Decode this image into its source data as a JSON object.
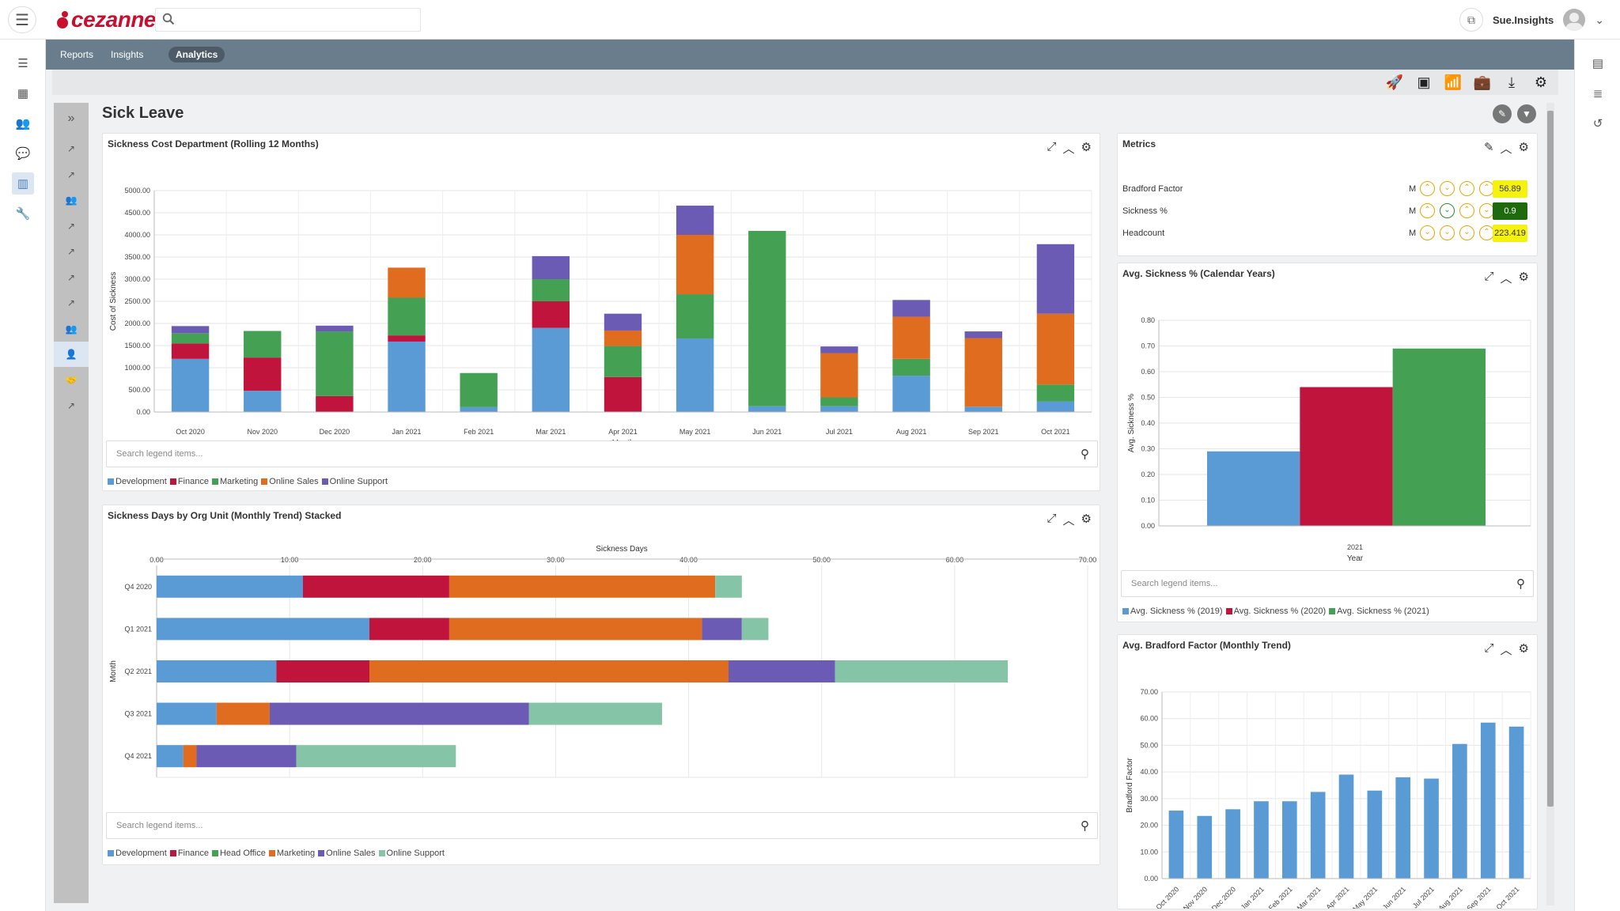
{
  "header": {
    "username": "Sue.Insights",
    "search_placeholder": ""
  },
  "nav": {
    "tabs": [
      {
        "label": "Reports"
      },
      {
        "label": "Insights"
      },
      {
        "label": "Analytics"
      }
    ]
  },
  "page": {
    "title": "Sick Leave"
  },
  "legend_search_placeholder": "Search legend items...",
  "colors": {
    "development": "#5b9bd5",
    "finance": "#c0143c",
    "marketing": "#44a052",
    "online_sales": "#e06c1f",
    "online_support": "#6b5bb4",
    "head_office": "#85c4a7"
  },
  "cards": {
    "sickness_cost": {
      "title": "Sickness Cost Department (Rolling 12 Months)"
    },
    "sickness_days": {
      "title": "Sickness Days by Org Unit (Monthly Trend) Stacked"
    },
    "metrics": {
      "title": "Metrics"
    },
    "avg_sickness": {
      "title": "Avg. Sickness % (Calendar Years)"
    },
    "avg_bradford": {
      "title": "Avg. Bradford Factor (Monthly Trend)"
    }
  },
  "metrics": [
    {
      "label": "Bradford Factor",
      "m": "M",
      "value": "56.89",
      "arrows": [
        "up",
        "down",
        "up",
        "up"
      ],
      "value_bg": "#f5f20f",
      "value_fg": "#333333"
    },
    {
      "label": "Sickness %",
      "m": "M",
      "value": "0.9",
      "arrows": [
        "up",
        "down",
        "up",
        "down"
      ],
      "value_bg": "#1e6b0e",
      "value_fg": "#ffffff"
    },
    {
      "label": "Headcount",
      "m": "M",
      "value": "223.419",
      "arrows": [
        "down",
        "down",
        "down",
        "up"
      ],
      "value_bg": "#f5f20f",
      "value_fg": "#333333"
    }
  ],
  "chart_data": [
    {
      "type": "bar",
      "stacked": true,
      "title": "Sickness Cost Department (Rolling 12 Months)",
      "xlabel": "Month",
      "ylabel": "Cost of Sickness",
      "ylim": [
        0,
        5000
      ],
      "yticks": [
        "0.00",
        "500.00",
        "1000.00",
        "1500.00",
        "2000.00",
        "2500.00",
        "3000.00",
        "3500.00",
        "4000.00",
        "4500.00",
        "5000.00"
      ],
      "categories": [
        "Oct 2020",
        "Nov 2020",
        "Dec 2020",
        "Jan 2021",
        "Feb 2021",
        "Mar 2021",
        "Apr 2021",
        "May 2021",
        "Jun 2021",
        "Jul 2021",
        "Aug 2021",
        "Sep 2021",
        "Oct 2021"
      ],
      "series": [
        {
          "name": "Development",
          "color": "#5b9bd5",
          "values": [
            1200,
            480,
            0,
            1590,
            110,
            1900,
            0,
            1660,
            130,
            130,
            820,
            120,
            240
          ]
        },
        {
          "name": "Finance",
          "color": "#c0143c",
          "values": [
            350,
            750,
            360,
            140,
            0,
            600,
            790,
            0,
            0,
            0,
            0,
            0,
            0
          ]
        },
        {
          "name": "Marketing",
          "color": "#44a052",
          "values": [
            230,
            600,
            1460,
            850,
            770,
            500,
            700,
            1000,
            3960,
            200,
            380,
            0,
            380
          ]
        },
        {
          "name": "Online Sales",
          "color": "#e06c1f",
          "values": [
            0,
            0,
            0,
            680,
            0,
            0,
            350,
            1340,
            0,
            1000,
            950,
            1550,
            1600
          ]
        },
        {
          "name": "Online Support",
          "color": "#6b5bb4",
          "values": [
            160,
            0,
            130,
            0,
            0,
            520,
            380,
            660,
            0,
            150,
            380,
            150,
            1570
          ]
        }
      ]
    },
    {
      "type": "bar",
      "orientation": "horizontal",
      "stacked": true,
      "title": "Sickness Days by Org Unit (Monthly Trend) Stacked",
      "xlabel": "Sickness Days",
      "ylabel": "Month",
      "xlim": [
        0,
        70
      ],
      "xticks": [
        "0.00",
        "10.00",
        "20.00",
        "30.00",
        "40.00",
        "50.00",
        "60.00",
        "70.00"
      ],
      "categories": [
        "Q4 2020",
        "Q1 2021",
        "Q2 2021",
        "Q3 2021",
        "Q4 2021"
      ],
      "series": [
        {
          "name": "Development",
          "color": "#5b9bd5",
          "values": [
            11,
            16,
            9,
            4.5,
            2
          ]
        },
        {
          "name": "Finance",
          "color": "#c0143c",
          "values": [
            11,
            6,
            7,
            0,
            0
          ]
        },
        {
          "name": "Head Office",
          "color": "#44a052",
          "values": [
            0,
            0,
            0,
            0,
            0
          ]
        },
        {
          "name": "Marketing",
          "color": "#e06c1f",
          "values": [
            20,
            19,
            27,
            4,
            1
          ]
        },
        {
          "name": "Online Sales",
          "color": "#6b5bb4",
          "values": [
            0,
            3,
            8,
            19.5,
            7.5
          ]
        },
        {
          "name": "Online Support",
          "color": "#85c4a7",
          "values": [
            2,
            2,
            13,
            10,
            12
          ]
        }
      ]
    },
    {
      "type": "bar",
      "title": "Avg. Sickness % (Calendar Years)",
      "xlabel": "Year",
      "ylabel": "Avg. Sickness %",
      "ylim": [
        0,
        0.8
      ],
      "yticks": [
        "0.00",
        "0.10",
        "0.20",
        "0.30",
        "0.40",
        "0.50",
        "0.60",
        "0.70",
        "0.80"
      ],
      "categories": [
        "2021"
      ],
      "series": [
        {
          "name": "Avg. Sickness % (2019)",
          "color": "#5b9bd5",
          "values": [
            0.29
          ]
        },
        {
          "name": "Avg. Sickness % (2020)",
          "color": "#c0143c",
          "values": [
            0.54
          ]
        },
        {
          "name": "Avg. Sickness % (2021)",
          "color": "#44a052",
          "values": [
            0.69
          ]
        }
      ]
    },
    {
      "type": "bar",
      "title": "Avg. Bradford Factor (Monthly Trend)",
      "ylabel": "Bradford Factor",
      "ylim": [
        0,
        70
      ],
      "yticks": [
        "0.00",
        "10.00",
        "20.00",
        "30.00",
        "40.00",
        "50.00",
        "60.00",
        "70.00"
      ],
      "categories": [
        "Oct 2020",
        "Nov 2020",
        "Dec 2020",
        "Jan 2021",
        "Feb 2021",
        "Mar 2021",
        "Apr 2021",
        "May 2021",
        "Jun 2021",
        "Jul 2021",
        "Aug 2021",
        "Sep 2021",
        "Oct 2021"
      ],
      "series": [
        {
          "color": "#5b9bd5",
          "values": [
            25.5,
            23.5,
            26,
            29,
            29,
            32.5,
            39,
            33,
            38,
            37.5,
            50.5,
            58.5,
            57
          ]
        }
      ]
    }
  ]
}
